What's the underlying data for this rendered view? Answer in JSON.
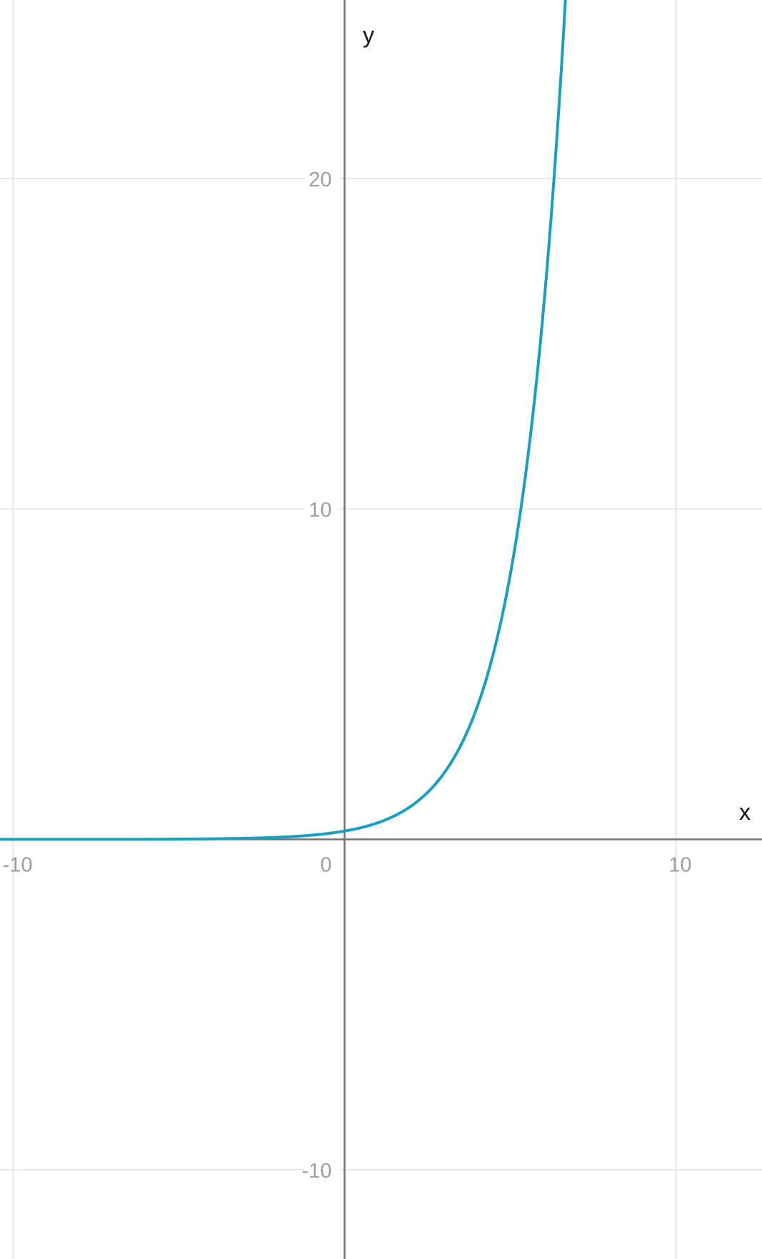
{
  "chart_data": {
    "type": "line",
    "title": "",
    "xlabel": "x",
    "ylabel": "y",
    "xlim": [
      -10.4,
      12.6
    ],
    "ylim": [
      -12.7,
      25.4
    ],
    "grid": true,
    "x_ticks": [
      -10,
      0,
      10
    ],
    "y_ticks": [
      -10,
      10,
      20
    ],
    "x_tick_labels": [
      "-10",
      "0",
      "10"
    ],
    "y_tick_labels": [
      "-10",
      "10",
      "20"
    ],
    "series": [
      {
        "function": "y = 2^(x-2)",
        "color": "#1a9fc0",
        "x": [
          -10,
          -8,
          -6,
          -4,
          -2,
          0,
          1,
          2,
          3,
          4,
          5,
          5.5,
          6,
          6.5,
          6.67
        ],
        "y": [
          0.0002,
          0.001,
          0.004,
          0.016,
          0.0625,
          0.25,
          0.5,
          1,
          2,
          4,
          8,
          11.3,
          16,
          22.6,
          25.4
        ]
      }
    ],
    "colors": {
      "axis": "#757575",
      "grid": "#e6e6e6",
      "curve": "#1a9fc0"
    }
  }
}
